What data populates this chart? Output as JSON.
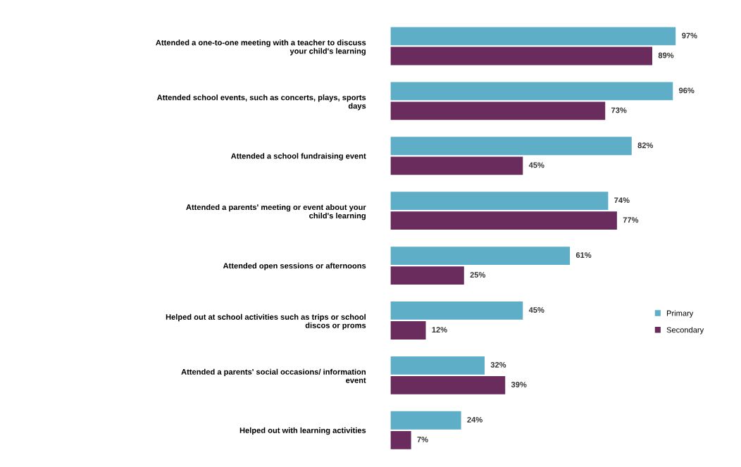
{
  "chart_data": {
    "type": "bar",
    "orientation": "horizontal",
    "categories": [
      "Attended a one-to-one meeting with a teacher to discuss\nyour child's learning",
      "Attended school events, such as concerts, plays, sports\ndays",
      "Attended a school fundraising event",
      "Attended a parents' meeting or event about your\nchild's learning",
      "Attended open sessions or afternoons",
      "Helped out at school activities such as trips or school\ndiscos or proms",
      "Attended a parents' social occasions/ information\nevent",
      "Helped out with learning activities"
    ],
    "series": [
      {
        "name": "Primary",
        "color": "#5eaec8",
        "values": [
          97,
          96,
          82,
          74,
          61,
          45,
          32,
          24
        ],
        "value_labels": [
          "97%",
          "96%",
          "82%",
          "74%",
          "61%",
          "45%",
          "32%",
          "24%"
        ]
      },
      {
        "name": "Secondary",
        "color": "#6a2c5c",
        "values": [
          89,
          73,
          45,
          77,
          25,
          12,
          39,
          7
        ],
        "value_labels": [
          "89%",
          "73%",
          "45%",
          "77%",
          "25%",
          "12%",
          "39%",
          "7%"
        ]
      }
    ],
    "legend": "right",
    "tick_labels": "y"
  }
}
